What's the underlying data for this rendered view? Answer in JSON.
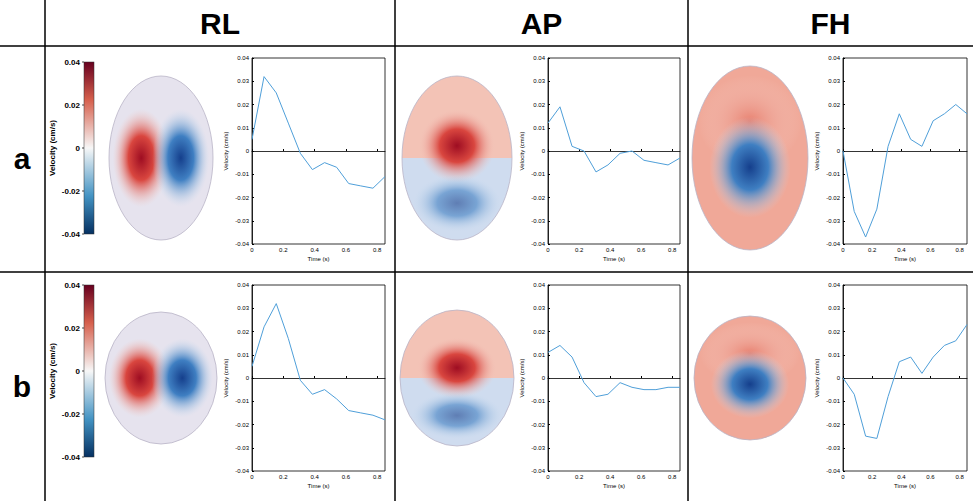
{
  "columns": [
    "RL",
    "AP",
    "FH"
  ],
  "rows": [
    "a",
    "b"
  ],
  "colorbar": {
    "label": "Velocity (cm/s)",
    "range": [
      -0.04,
      0.04
    ],
    "ticks": [
      -0.04,
      -0.02,
      0,
      0.02,
      0.04
    ]
  },
  "chart_data": [
    {
      "type": "line",
      "xlabel": "Time (s)",
      "ylabel": "Velocity (cm/s)",
      "color": "#4f9fd9",
      "x": [
        0,
        0.077,
        0.155,
        0.232,
        0.309,
        0.386,
        0.464,
        0.541,
        0.618,
        0.695,
        0.773,
        0.85
      ],
      "values": [
        0.005,
        0.032,
        0.025,
        0.012,
        -0.001,
        -0.008,
        -0.005,
        -0.007,
        -0.014,
        -0.015,
        -0.016,
        -0.011
      ],
      "xlim": [
        0,
        0.85
      ],
      "ylim": [
        -0.04,
        0.04
      ],
      "xticks": [
        0,
        0.2,
        0.4,
        0.6,
        0.8
      ],
      "yticks": [
        -0.04,
        -0.03,
        -0.02,
        -0.01,
        0,
        0.01,
        0.02,
        0.03,
        0.04
      ]
    },
    {
      "type": "line",
      "xlabel": "Time (s)",
      "ylabel": "Velocity (cm/s)",
      "color": "#4f9fd9",
      "x": [
        0,
        0.077,
        0.155,
        0.232,
        0.309,
        0.386,
        0.464,
        0.541,
        0.618,
        0.695,
        0.773,
        0.85
      ],
      "values": [
        0.012,
        0.019,
        0.002,
        0.0,
        -0.009,
        -0.006,
        -0.001,
        0.0,
        -0.004,
        -0.005,
        -0.006,
        -0.003
      ],
      "xlim": [
        0,
        0.85
      ],
      "ylim": [
        -0.04,
        0.04
      ],
      "xticks": [
        0,
        0.2,
        0.4,
        0.6,
        0.8
      ],
      "yticks": [
        -0.04,
        -0.03,
        -0.02,
        -0.01,
        0,
        0.01,
        0.02,
        0.03,
        0.04
      ]
    },
    {
      "type": "line",
      "xlabel": "Time (s)",
      "ylabel": "Velocity (cm/s)",
      "color": "#4f9fd9",
      "x": [
        0,
        0.077,
        0.155,
        0.232,
        0.309,
        0.386,
        0.464,
        0.541,
        0.618,
        0.695,
        0.773,
        0.85
      ],
      "values": [
        0.0,
        -0.026,
        -0.037,
        -0.025,
        0.002,
        0.016,
        0.005,
        0.002,
        0.013,
        0.016,
        0.02,
        0.016
      ],
      "xlim": [
        0,
        0.85
      ],
      "ylim": [
        -0.04,
        0.04
      ],
      "xticks": [
        0,
        0.2,
        0.4,
        0.6,
        0.8
      ],
      "yticks": [
        -0.04,
        -0.03,
        -0.02,
        -0.01,
        0,
        0.01,
        0.02,
        0.03,
        0.04
      ]
    },
    {
      "type": "line",
      "xlabel": "Time (s)",
      "ylabel": "Velocity (cm/s)",
      "color": "#4f9fd9",
      "x": [
        0,
        0.077,
        0.155,
        0.232,
        0.309,
        0.386,
        0.464,
        0.541,
        0.618,
        0.695,
        0.773,
        0.85
      ],
      "values": [
        0.005,
        0.022,
        0.032,
        0.017,
        -0.001,
        -0.007,
        -0.005,
        -0.009,
        -0.014,
        -0.015,
        -0.016,
        -0.018
      ],
      "xlim": [
        0,
        0.85
      ],
      "ylim": [
        -0.04,
        0.04
      ],
      "xticks": [
        0,
        0.2,
        0.4,
        0.6,
        0.8
      ],
      "yticks": [
        -0.04,
        -0.03,
        -0.02,
        -0.01,
        0,
        0.01,
        0.02,
        0.03,
        0.04
      ]
    },
    {
      "type": "line",
      "xlabel": "Time (s)",
      "ylabel": "Velocity (cm/s)",
      "color": "#4f9fd9",
      "x": [
        0,
        0.077,
        0.155,
        0.232,
        0.309,
        0.386,
        0.464,
        0.541,
        0.618,
        0.695,
        0.773,
        0.85
      ],
      "values": [
        0.011,
        0.014,
        0.009,
        -0.002,
        -0.008,
        -0.007,
        -0.002,
        -0.004,
        -0.005,
        -0.005,
        -0.004,
        -0.004
      ],
      "xlim": [
        0,
        0.85
      ],
      "ylim": [
        -0.04,
        0.04
      ],
      "xticks": [
        0,
        0.2,
        0.4,
        0.6,
        0.8
      ],
      "yticks": [
        -0.04,
        -0.03,
        -0.02,
        -0.01,
        0,
        0.01,
        0.02,
        0.03,
        0.04
      ]
    },
    {
      "type": "line",
      "xlabel": "Time (s)",
      "ylabel": "Velocity (cm/s)",
      "color": "#4f9fd9",
      "x": [
        0,
        0.077,
        0.155,
        0.232,
        0.309,
        0.386,
        0.464,
        0.541,
        0.618,
        0.695,
        0.773,
        0.85
      ],
      "values": [
        0.0,
        -0.007,
        -0.025,
        -0.026,
        -0.008,
        0.007,
        0.009,
        0.002,
        0.009,
        0.014,
        0.016,
        0.023
      ],
      "xlim": [
        0,
        0.85
      ],
      "ylim": [
        -0.04,
        0.04
      ],
      "xticks": [
        0,
        0.2,
        0.4,
        0.6,
        0.8
      ],
      "yticks": [
        -0.04,
        -0.03,
        -0.02,
        -0.01,
        0,
        0.01,
        0.02,
        0.03,
        0.04
      ]
    }
  ]
}
